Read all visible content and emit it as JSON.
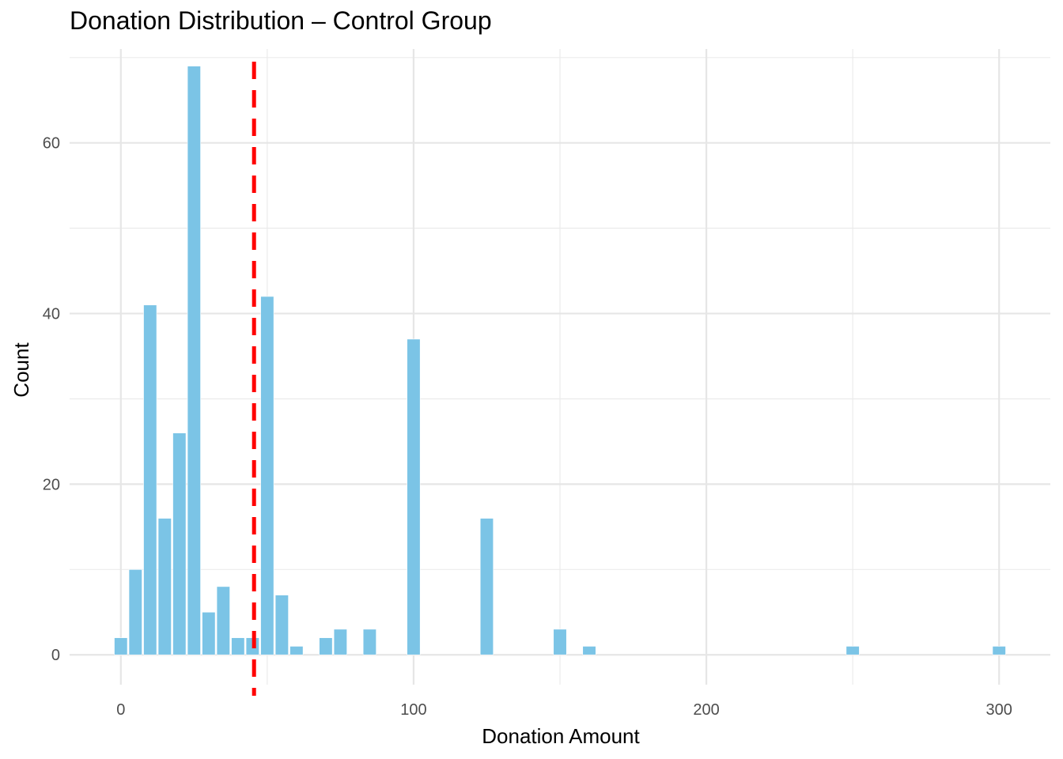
{
  "chart_data": {
    "type": "bar",
    "title": "Donation Distribution – Control Group",
    "xlabel": "Donation Amount",
    "ylabel": "Count",
    "xlim": [
      -17.5,
      317.5
    ],
    "ylim": [
      -3.5,
      71
    ],
    "xticks": [
      0,
      100,
      200,
      300
    ],
    "yticks": [
      0,
      20,
      40,
      60
    ],
    "bin_width": 5,
    "bar_color": "#7bc4e6",
    "reference_line": {
      "x": 45.5,
      "color": "#ff0000",
      "style": "dashed"
    },
    "grid": true,
    "bins": [
      {
        "x": 0,
        "count": 2
      },
      {
        "x": 5,
        "count": 10
      },
      {
        "x": 10,
        "count": 41
      },
      {
        "x": 15,
        "count": 16
      },
      {
        "x": 20,
        "count": 26
      },
      {
        "x": 25,
        "count": 69
      },
      {
        "x": 30,
        "count": 5
      },
      {
        "x": 35,
        "count": 8
      },
      {
        "x": 40,
        "count": 2
      },
      {
        "x": 45,
        "count": 2
      },
      {
        "x": 50,
        "count": 42
      },
      {
        "x": 55,
        "count": 7
      },
      {
        "x": 60,
        "count": 1
      },
      {
        "x": 65,
        "count": 0
      },
      {
        "x": 70,
        "count": 2
      },
      {
        "x": 75,
        "count": 3
      },
      {
        "x": 80,
        "count": 0
      },
      {
        "x": 85,
        "count": 3
      },
      {
        "x": 90,
        "count": 0
      },
      {
        "x": 95,
        "count": 0
      },
      {
        "x": 100,
        "count": 37
      },
      {
        "x": 105,
        "count": 0
      },
      {
        "x": 110,
        "count": 0
      },
      {
        "x": 115,
        "count": 0
      },
      {
        "x": 120,
        "count": 0
      },
      {
        "x": 125,
        "count": 16
      },
      {
        "x": 130,
        "count": 0
      },
      {
        "x": 135,
        "count": 0
      },
      {
        "x": 140,
        "count": 0
      },
      {
        "x": 145,
        "count": 0
      },
      {
        "x": 150,
        "count": 3
      },
      {
        "x": 155,
        "count": 0
      },
      {
        "x": 160,
        "count": 1
      },
      {
        "x": 250,
        "count": 1
      },
      {
        "x": 300,
        "count": 1
      }
    ]
  }
}
